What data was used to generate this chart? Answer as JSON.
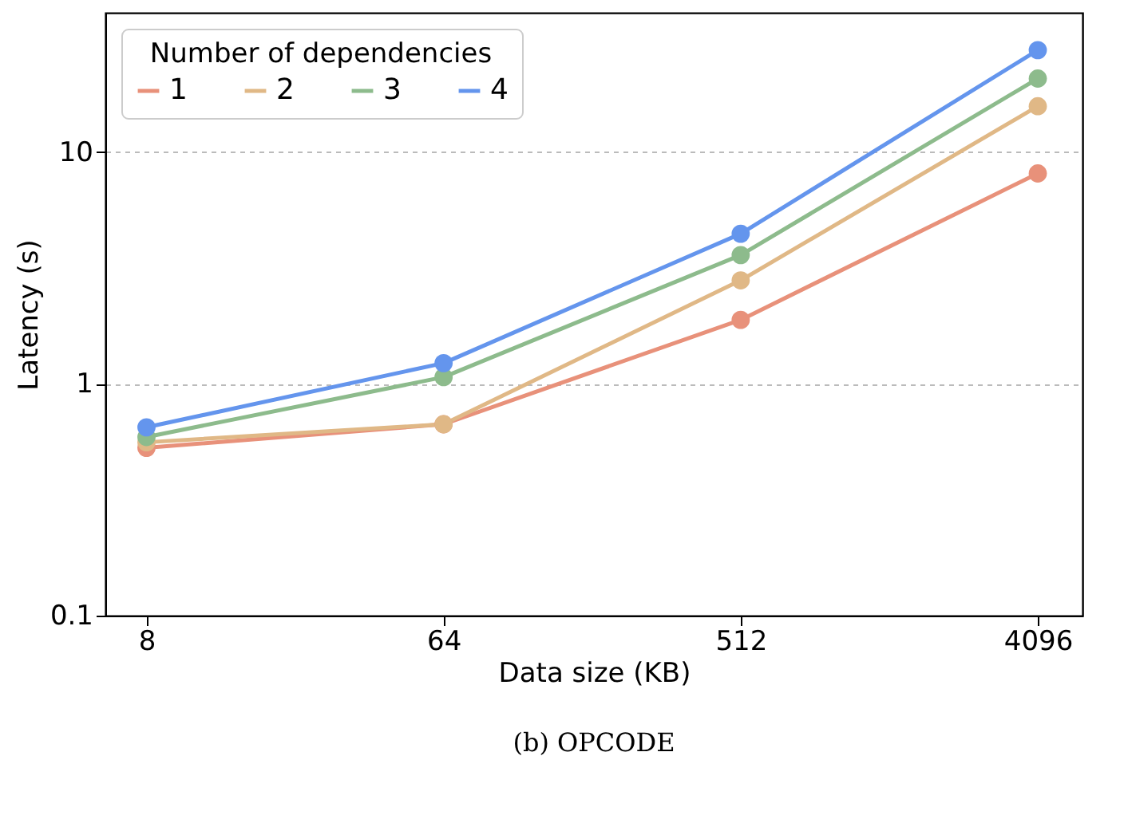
{
  "chart_data": {
    "type": "line",
    "xlabel": "Data size (KB)",
    "ylabel": "Latency (s)",
    "legend_title": "Number of dependencies",
    "x": [
      8,
      64,
      512,
      4096
    ],
    "log": "xy",
    "xlim": [
      6,
      5600
    ],
    "xticks": [
      8,
      64,
      512,
      4096
    ],
    "ylim": [
      0.1,
      40
    ],
    "yticks": [
      0.1,
      1,
      10
    ],
    "grid": "y",
    "legend": "top left",
    "marker": "circle",
    "line_style": "solid",
    "series": [
      {
        "name": "1",
        "color": "#e8917a",
        "values": [
          0.53,
          0.67,
          1.89,
          8.1
        ]
      },
      {
        "name": "2",
        "color": "#e0b886",
        "values": [
          0.56,
          0.67,
          2.8,
          15.8
        ]
      },
      {
        "name": "3",
        "color": "#8dbb8c",
        "values": [
          0.59,
          1.07,
          3.6,
          20.8
        ]
      },
      {
        "name": "4",
        "color": "#6495ed",
        "values": [
          0.65,
          1.23,
          4.45,
          27.6
        ]
      }
    ],
    "annotations": [
      "(b) OPCODE"
    ]
  }
}
